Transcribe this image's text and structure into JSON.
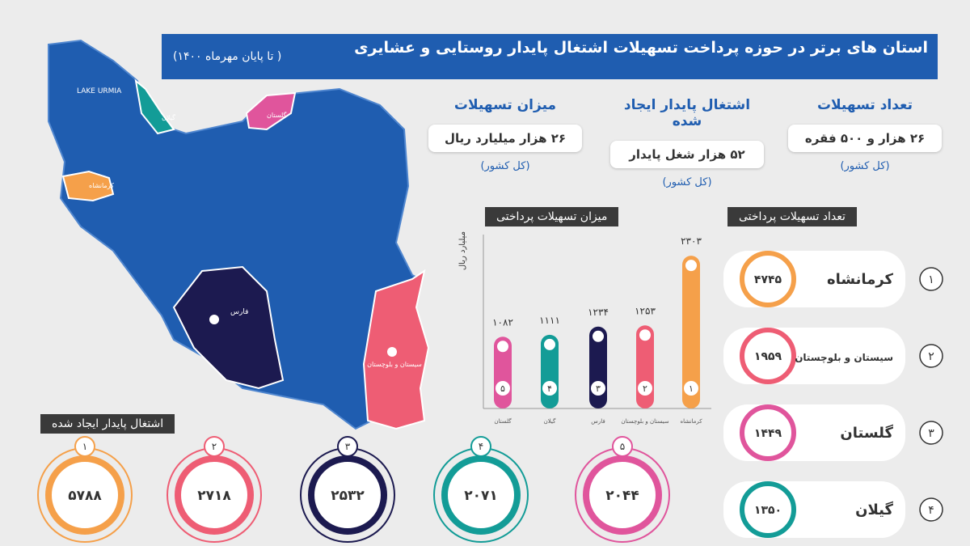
{
  "header": {
    "title": "استان های برتر در حوزه پرداخت تسهیلات اشتغال پایدار روستایی و عشایری",
    "subtitle": "( تا پایان مهرماه ۱۴۰۰)"
  },
  "stats": [
    {
      "title": "تعداد تسهیلات",
      "value": "۲۶ هزار و ۵۰۰ فقره",
      "note": "(کل کشور)"
    },
    {
      "title": "اشتغال پایدار ایجاد شده",
      "value": "۵۲ هزار شغل پایدار",
      "note": "(کل کشور)"
    },
    {
      "title": "میزان تسهیلات",
      "value": "۲۶ هزار میلیارد ریال",
      "note": "(کل کشور)"
    }
  ],
  "map": {
    "labels": [
      "LAKE URMIA",
      "گیلان",
      "گلستان",
      "کرمانشاه",
      "فارس",
      "سیستان و بلوچستان"
    ]
  },
  "chart_data": {
    "type": "bar",
    "title": "میزان تسهیلات پرداختی",
    "y_label": "میلیارد ریال",
    "categories": [
      "کرمانشاه",
      "سیستان و بلوچستان",
      "فارس",
      "گیلان",
      "گلستان"
    ],
    "values": [
      2303,
      1253,
      1234,
      1111,
      1082
    ],
    "value_labels": [
      "۲۳۰۳",
      "۱۲۵۳",
      "۱۲۳۴",
      "۱۱۱۱",
      "۱۰۸۲"
    ],
    "rank_labels": [
      "۱",
      "۲",
      "۳",
      "۴",
      "۵"
    ],
    "colors": [
      "#f5a04a",
      "#ee5d74",
      "#1c1a50",
      "#139c97",
      "#e0559c"
    ],
    "ylim": [
      0,
      2500
    ]
  },
  "ranking": {
    "title": "تعداد تسهیلات پرداختی",
    "items": [
      {
        "rank": "۱",
        "name": "کرمانشاه",
        "value": "۴۷۴۵",
        "color": "#f5a04a"
      },
      {
        "rank": "۲",
        "name": "سیستان و بلوچستان",
        "value": "۱۹۵۹",
        "color": "#ee5d74"
      },
      {
        "rank": "۳",
        "name": "گلستان",
        "value": "۱۴۴۹",
        "color": "#e0559c"
      },
      {
        "rank": "۴",
        "name": "گیلان",
        "value": "۱۳۵۰",
        "color": "#139c97"
      }
    ]
  },
  "employment": {
    "title": "اشتغال پایدار ایجاد شده",
    "items": [
      {
        "rank": "۱",
        "value": "۵۷۸۸",
        "color": "#f5a04a"
      },
      {
        "rank": "۲",
        "value": "۲۷۱۸",
        "color": "#ee5d74"
      },
      {
        "rank": "۳",
        "value": "۲۵۳۲",
        "color": "#1c1a50"
      },
      {
        "rank": "۴",
        "value": "۲۰۷۱",
        "color": "#139c97"
      },
      {
        "rank": "۵",
        "value": "۲۰۴۴",
        "color": "#e0559c"
      }
    ]
  }
}
